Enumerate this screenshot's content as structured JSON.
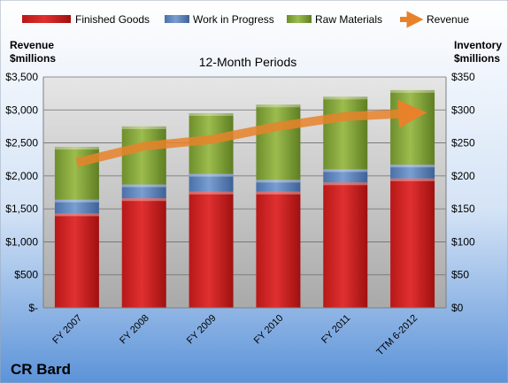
{
  "chart_data": {
    "type": "bar",
    "stacked": true,
    "title": "12-Month Periods",
    "company": "CR Bard",
    "categories": [
      "FY 2007",
      "FY 2008",
      "FY 2009",
      "FY 2010",
      "FY 2011",
      "TTM 6-2012"
    ],
    "series": [
      {
        "name": "Finished Goods",
        "axis": "right",
        "color": "#d02020",
        "values": [
          143,
          166,
          176,
          176,
          190,
          196
        ]
      },
      {
        "name": "Work in Progress",
        "axis": "right",
        "color": "#5a82c0",
        "values": [
          21,
          21,
          27,
          18,
          20,
          21
        ]
      },
      {
        "name": "Raw Materials",
        "axis": "right",
        "color": "#86a83a",
        "values": [
          80,
          88,
          92,
          114,
          110,
          113
        ]
      },
      {
        "name": "Revenue",
        "axis": "left",
        "type": "line",
        "color": "#e8822a",
        "values": [
          2200,
          2450,
          2550,
          2750,
          2900,
          2950
        ]
      }
    ],
    "left_axis": {
      "label_line1": "Revenue",
      "label_line2": "$millions",
      "ylim": [
        0,
        3500
      ],
      "ticks": [
        "$-",
        "$500",
        "$1,000",
        "$1,500",
        "$2,000",
        "$2,500",
        "$3,000",
        "$3,500"
      ]
    },
    "right_axis": {
      "label_line1": "Inventory",
      "label_line2": "$millions",
      "ylim": [
        0,
        350
      ],
      "ticks": [
        "$0",
        "$50",
        "$100",
        "$150",
        "$200",
        "$250",
        "$300",
        "$350"
      ]
    },
    "grid": true,
    "legend_position": "top"
  }
}
